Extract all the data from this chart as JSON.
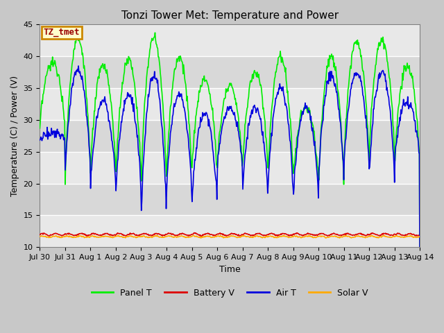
{
  "title": "Tonzi Tower Met: Temperature and Power",
  "xlabel": "Time",
  "ylabel": "Temperature (C) / Power (V)",
  "ylim": [
    10,
    45
  ],
  "series": {
    "panel_t": {
      "color": "#00ee00",
      "label": "Panel T",
      "lw": 1.2
    },
    "battery_v": {
      "color": "#dd0000",
      "label": "Battery V",
      "lw": 1.2
    },
    "air_t": {
      "color": "#0000dd",
      "label": "Air T",
      "lw": 1.2
    },
    "solar_v": {
      "color": "#ffaa00",
      "label": "Solar V",
      "lw": 1.2
    }
  },
  "xtick_labels": [
    "Jul 30",
    "Jul 31",
    "Aug 1",
    "Aug 2",
    "Aug 3",
    "Aug 4",
    "Aug 5",
    "Aug 6",
    "Aug 7",
    "Aug 8",
    "Aug 9",
    "Aug 10",
    "Aug 11",
    "Aug 12",
    "Aug 13",
    "Aug 14"
  ],
  "yticks": [
    10,
    15,
    20,
    25,
    30,
    35,
    40,
    45
  ],
  "annotation_text": "TZ_tmet",
  "annotation_color": "#990000",
  "annotation_bg": "#ffffcc",
  "annotation_border": "#cc8800",
  "band_colors": [
    "#e8e8e8",
    "#d8d8d8"
  ],
  "fig_bg": "#c8c8c8",
  "title_fontsize": 11,
  "axis_fontsize": 9,
  "tick_fontsize": 8
}
